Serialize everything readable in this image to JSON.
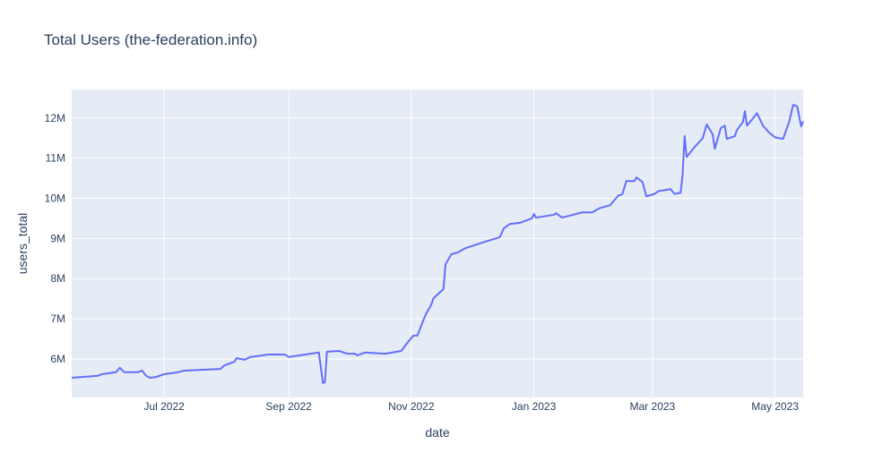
{
  "chart_data": {
    "type": "line",
    "title": "Total Users (the-federation.info)",
    "x_label": "date",
    "y_label": "users_total",
    "grid": true,
    "xlim": [
      "2022-05-16",
      "2023-05-15"
    ],
    "ylim": [
      5040000,
      12710000
    ],
    "xticks": [
      {
        "value": "2022-07-01",
        "label": "Jul 2022"
      },
      {
        "value": "2022-09-01",
        "label": "Sep 2022"
      },
      {
        "value": "2022-11-01",
        "label": "Nov 2022"
      },
      {
        "value": "2023-01-01",
        "label": "Jan 2023"
      },
      {
        "value": "2023-03-01",
        "label": "Mar 2023"
      },
      {
        "value": "2023-05-01",
        "label": "May 2023"
      }
    ],
    "yticks": [
      {
        "value": 6000000,
        "label": "6M"
      },
      {
        "value": 7000000,
        "label": "7M"
      },
      {
        "value": 8000000,
        "label": "8M"
      },
      {
        "value": 9000000,
        "label": "9M"
      },
      {
        "value": 10000000,
        "label": "10M"
      },
      {
        "value": 11000000,
        "label": "11M"
      },
      {
        "value": 12000000,
        "label": "12M"
      }
    ],
    "x": [
      "2022-05-16",
      "2022-05-29",
      "2022-05-31",
      "2022-06-07",
      "2022-06-09",
      "2022-06-11",
      "2022-06-18",
      "2022-06-20",
      "2022-06-22",
      "2022-06-24",
      "2022-06-27",
      "2022-07-01",
      "2022-07-08",
      "2022-07-11",
      "2022-07-29",
      "2022-07-31",
      "2022-08-05",
      "2022-08-06",
      "2022-08-10",
      "2022-08-13",
      "2022-08-22",
      "2022-08-30",
      "2022-09-01",
      "2022-09-16",
      "2022-09-18",
      "2022-09-19",
      "2022-09-20",
      "2022-09-26",
      "2022-09-30",
      "2022-10-04",
      "2022-10-05",
      "2022-10-09",
      "2022-10-19",
      "2022-10-27",
      "2022-10-30",
      "2022-11-02",
      "2022-11-04",
      "2022-11-08",
      "2022-11-11",
      "2022-11-12",
      "2022-11-17",
      "2022-11-18",
      "2022-11-21",
      "2022-11-24",
      "2022-11-28",
      "2022-12-09",
      "2022-12-15",
      "2022-12-17",
      "2022-12-20",
      "2022-12-25",
      "2022-12-31",
      "2023-01-01",
      "2023-01-02",
      "2023-01-11",
      "2023-01-12",
      "2023-01-15",
      "2023-01-25",
      "2023-01-30",
      "2023-02-03",
      "2023-02-08",
      "2023-02-12",
      "2023-02-14",
      "2023-02-16",
      "2023-02-20",
      "2023-02-21",
      "2023-02-24",
      "2023-02-26",
      "2023-03-02",
      "2023-03-04",
      "2023-03-10",
      "2023-03-12",
      "2023-03-15",
      "2023-03-16",
      "2023-03-17",
      "2023-03-18",
      "2023-03-22",
      "2023-03-26",
      "2023-03-28",
      "2023-03-31",
      "2023-04-01",
      "2023-04-04",
      "2023-04-06",
      "2023-04-07",
      "2023-04-11",
      "2023-04-12",
      "2023-04-15",
      "2023-04-16",
      "2023-04-17",
      "2023-04-20",
      "2023-04-22",
      "2023-04-25",
      "2023-04-28",
      "2023-05-01",
      "2023-05-05",
      "2023-05-08",
      "2023-05-10",
      "2023-05-12",
      "2023-05-14",
      "2023-05-15"
    ],
    "series": [
      {
        "name": "users_total",
        "color": "#636efa",
        "values": [
          5530000,
          5580000,
          5620000,
          5670000,
          5780000,
          5670000,
          5670000,
          5710000,
          5580000,
          5530000,
          5550000,
          5620000,
          5670000,
          5710000,
          5750000,
          5840000,
          5930000,
          6020000,
          5980000,
          6050000,
          6110000,
          6110000,
          6050000,
          6160000,
          5400000,
          5420000,
          6180000,
          6200000,
          6130000,
          6130000,
          6090000,
          6160000,
          6130000,
          6200000,
          6400000,
          6580000,
          6580000,
          7090000,
          7360000,
          7510000,
          7740000,
          8360000,
          8610000,
          8650000,
          8760000,
          8940000,
          9030000,
          9250000,
          9360000,
          9390000,
          9500000,
          9610000,
          9520000,
          9590000,
          9630000,
          9520000,
          9650000,
          9650000,
          9760000,
          9830000,
          10070000,
          10100000,
          10430000,
          10430000,
          10520000,
          10410000,
          10050000,
          10110000,
          10180000,
          10230000,
          10110000,
          10140000,
          10590000,
          11550000,
          11030000,
          11280000,
          11500000,
          11840000,
          11590000,
          11230000,
          11750000,
          11810000,
          11480000,
          11550000,
          11700000,
          11900000,
          12170000,
          11810000,
          11990000,
          12120000,
          11810000,
          11640000,
          11520000,
          11480000,
          11900000,
          12330000,
          12290000,
          11790000,
          11920000
        ]
      }
    ]
  }
}
